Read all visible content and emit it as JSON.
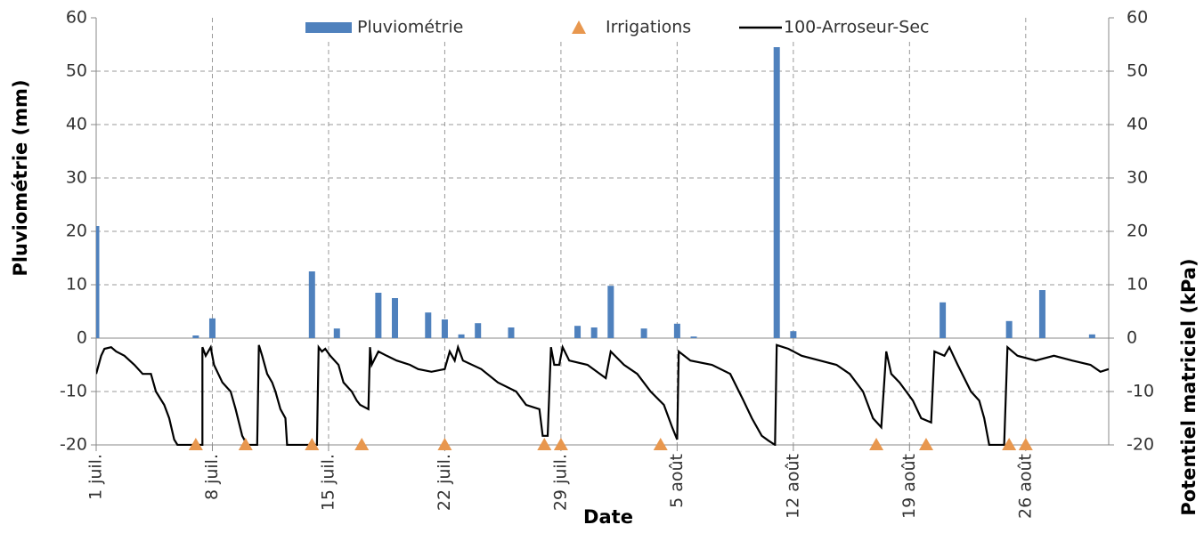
{
  "chart_data": {
    "type": "combo",
    "x_label": "Date",
    "y_label": "Pluviométrie (mm)",
    "y2_label": "Potentiel matriciel (kPa)",
    "xlim": [
      0,
      61
    ],
    "xticks": [
      {
        "value": 0,
        "label": "1 juil."
      },
      {
        "value": 7,
        "label": "8 juil."
      },
      {
        "value": 14,
        "label": "15 juil."
      },
      {
        "value": 21,
        "label": "22 juil."
      },
      {
        "value": 28,
        "label": "29 juil."
      },
      {
        "value": 35,
        "label": "5 août"
      },
      {
        "value": 42,
        "label": "12 août"
      },
      {
        "value": 49,
        "label": "19 août"
      },
      {
        "value": 56,
        "label": "26 août"
      }
    ],
    "ylim": [
      -20,
      60
    ],
    "yticks": [
      -20,
      -10,
      0,
      10,
      20,
      30,
      40,
      50,
      60
    ],
    "y2lim": [
      -20,
      60
    ],
    "y2ticks": [
      -20,
      -10,
      0,
      10,
      20,
      30,
      40,
      50,
      60
    ],
    "grid": true,
    "legend": "top",
    "series": [
      {
        "name": "Pluviométrie",
        "type": "bar",
        "color": "#4f81bd",
        "x": [
          0,
          6,
          7,
          13,
          14.5,
          17,
          18,
          20,
          21,
          22,
          23,
          25,
          29,
          30,
          31,
          33,
          35,
          36,
          41,
          42,
          51,
          55,
          57,
          60
        ],
        "values": [
          21,
          0.5,
          3.7,
          12.5,
          1.8,
          8.5,
          7.5,
          4.8,
          3.5,
          0.7,
          2.8,
          2,
          2.3,
          2,
          9.8,
          1.8,
          2.7,
          0.3,
          54.5,
          1.3,
          6.7,
          3.2,
          9,
          0.7
        ]
      },
      {
        "name": "Irrigations",
        "type": "scatter",
        "color": "#e8974e",
        "axis": "y2",
        "x": [
          6,
          9,
          13,
          16,
          21,
          27,
          28,
          34,
          47,
          50,
          55,
          56
        ],
        "values": [
          -20,
          -20,
          -20,
          -20,
          -20,
          -20,
          -20,
          -20,
          -20,
          -20,
          -20,
          -20
        ]
      },
      {
        "name": "100-Arroseur-Sec",
        "type": "line",
        "color": "#000000",
        "axis": "y2",
        "x": [
          0,
          0.3,
          0.5,
          0.9,
          1.2,
          1.7,
          2.3,
          2.8,
          3.3,
          3.6,
          4.1,
          4.4,
          4.7,
          4.9,
          5.9,
          6.4,
          6.4,
          6.6,
          6.9,
          7.1,
          7.6,
          8.1,
          8.4,
          8.8,
          9.1,
          9.7,
          9.8,
          10,
          10.3,
          10.6,
          10.8,
          11.1,
          11.4,
          11.5,
          13.3,
          13.4,
          13.6,
          13.8,
          14.1,
          14.6,
          14.9,
          15.4,
          15.7,
          15.9,
          16.4,
          16.5,
          16.6,
          17,
          17.5,
          18.1,
          18.9,
          19.4,
          20.2,
          21,
          21.3,
          21.6,
          21.8,
          22.1,
          23.2,
          24.2,
          25.3,
          25.9,
          26.7,
          26.9,
          27.2,
          27.4,
          27.6,
          27.9,
          28.1,
          28.5,
          29.6,
          30.7,
          31,
          31.8,
          32.6,
          33.4,
          34.2,
          34.7,
          35,
          35.1,
          35.8,
          37.1,
          38.2,
          39,
          39.5,
          40.1,
          40.5,
          40.9,
          41,
          41.7,
          42.5,
          43.6,
          44.6,
          45.4,
          46.2,
          46.8,
          47.3,
          47.6,
          47.9,
          48.4,
          49.2,
          49.7,
          50.3,
          50.5,
          51.1,
          51.4,
          51.9,
          52.7,
          53.2,
          53.5,
          53.8,
          54.7,
          54.9,
          55.5,
          56.6,
          57.7,
          58.8,
          59.9,
          60.5,
          61
        ],
        "values": [
          -6.7,
          -3.3,
          -2,
          -1.7,
          -2.5,
          -3.3,
          -5,
          -6.7,
          -6.7,
          -10,
          -12.5,
          -15,
          -19,
          -20,
          -20,
          -20,
          -1.7,
          -3.3,
          -1.7,
          -5,
          -8.3,
          -10,
          -13.3,
          -18.3,
          -20,
          -20,
          -1.3,
          -3.3,
          -6.7,
          -8.3,
          -10,
          -13.3,
          -15,
          -20,
          -20,
          -1.7,
          -2.5,
          -2,
          -3.3,
          -5,
          -8.3,
          -10,
          -11.7,
          -12.5,
          -13.3,
          -1.7,
          -5,
          -2.5,
          -3.3,
          -4.2,
          -5,
          -5.8,
          -6.3,
          -5.8,
          -2.5,
          -4.2,
          -1.7,
          -4.2,
          -5.8,
          -8.3,
          -10,
          -12.5,
          -13.3,
          -18.3,
          -18.3,
          -1.7,
          -5,
          -5,
          -1.7,
          -4.2,
          -5,
          -7.5,
          -2.5,
          -5,
          -6.7,
          -10,
          -12.5,
          -16.7,
          -19,
          -2.5,
          -4.2,
          -5,
          -6.7,
          -11.7,
          -15,
          -18.3,
          -19.2,
          -20,
          -1.3,
          -2,
          -3.3,
          -4.2,
          -5,
          -6.7,
          -10,
          -15,
          -16.7,
          -2.5,
          -6.7,
          -8.3,
          -11.7,
          -15,
          -15.8,
          -2.5,
          -3.3,
          -1.7,
          -5,
          -10,
          -11.7,
          -15,
          -20,
          -20,
          -1.7,
          -3.3,
          -4.2,
          -3.3,
          -4.2,
          -5,
          -6.3,
          -5.8
        ]
      }
    ]
  }
}
